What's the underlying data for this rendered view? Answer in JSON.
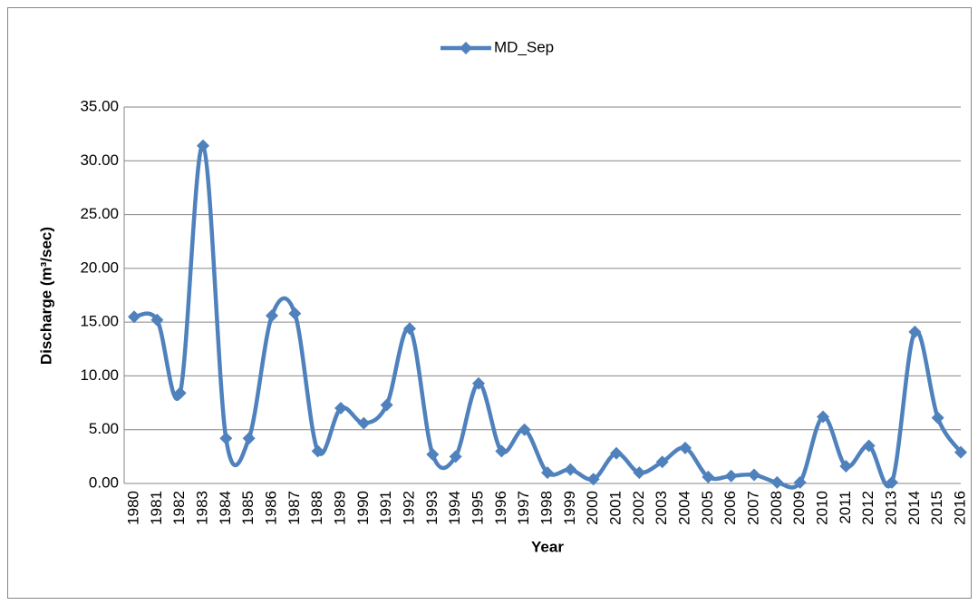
{
  "chart_data": {
    "type": "line",
    "smooth": true,
    "x_label": "Year",
    "y_label": "Discharge (m³/sec)",
    "categories": [
      "1980",
      "1981",
      "1982",
      "1983",
      "1984",
      "1985",
      "1986",
      "1987",
      "1988",
      "1989",
      "1990",
      "1991",
      "1992",
      "1993",
      "1994",
      "1995",
      "1996",
      "1997",
      "1998",
      "1999",
      "2000",
      "2001",
      "2002",
      "2003",
      "2004",
      "2005",
      "2006",
      "2007",
      "2008",
      "2009",
      "2010",
      "2011",
      "2012",
      "2013",
      "2014",
      "2015",
      "2016"
    ],
    "series": [
      {
        "name": "MD_Sep",
        "color": "#4f81bd",
        "values": [
          15.5,
          15.2,
          8.4,
          31.4,
          4.2,
          4.2,
          15.6,
          15.8,
          3.0,
          7.0,
          5.6,
          7.3,
          14.4,
          2.7,
          2.5,
          9.3,
          3.0,
          5.0,
          1.0,
          1.3,
          0.4,
          2.8,
          1.0,
          2.0,
          3.3,
          0.6,
          0.7,
          0.8,
          0.1,
          0.1,
          6.2,
          1.6,
          3.5,
          0.1,
          14.1,
          6.1,
          2.9
        ]
      }
    ],
    "ylim": [
      0,
      35
    ],
    "yticks": [
      {
        "value": 0,
        "label": "0.00"
      },
      {
        "value": 5,
        "label": "5.00"
      },
      {
        "value": 10,
        "label": "10.00"
      },
      {
        "value": 15,
        "label": "15.00"
      },
      {
        "value": 20,
        "label": "20.00"
      },
      {
        "value": 25,
        "label": "25.00"
      },
      {
        "value": 30,
        "label": "30.00"
      },
      {
        "value": 35,
        "label": "35.00"
      }
    ],
    "grid": true,
    "legend": "top"
  }
}
